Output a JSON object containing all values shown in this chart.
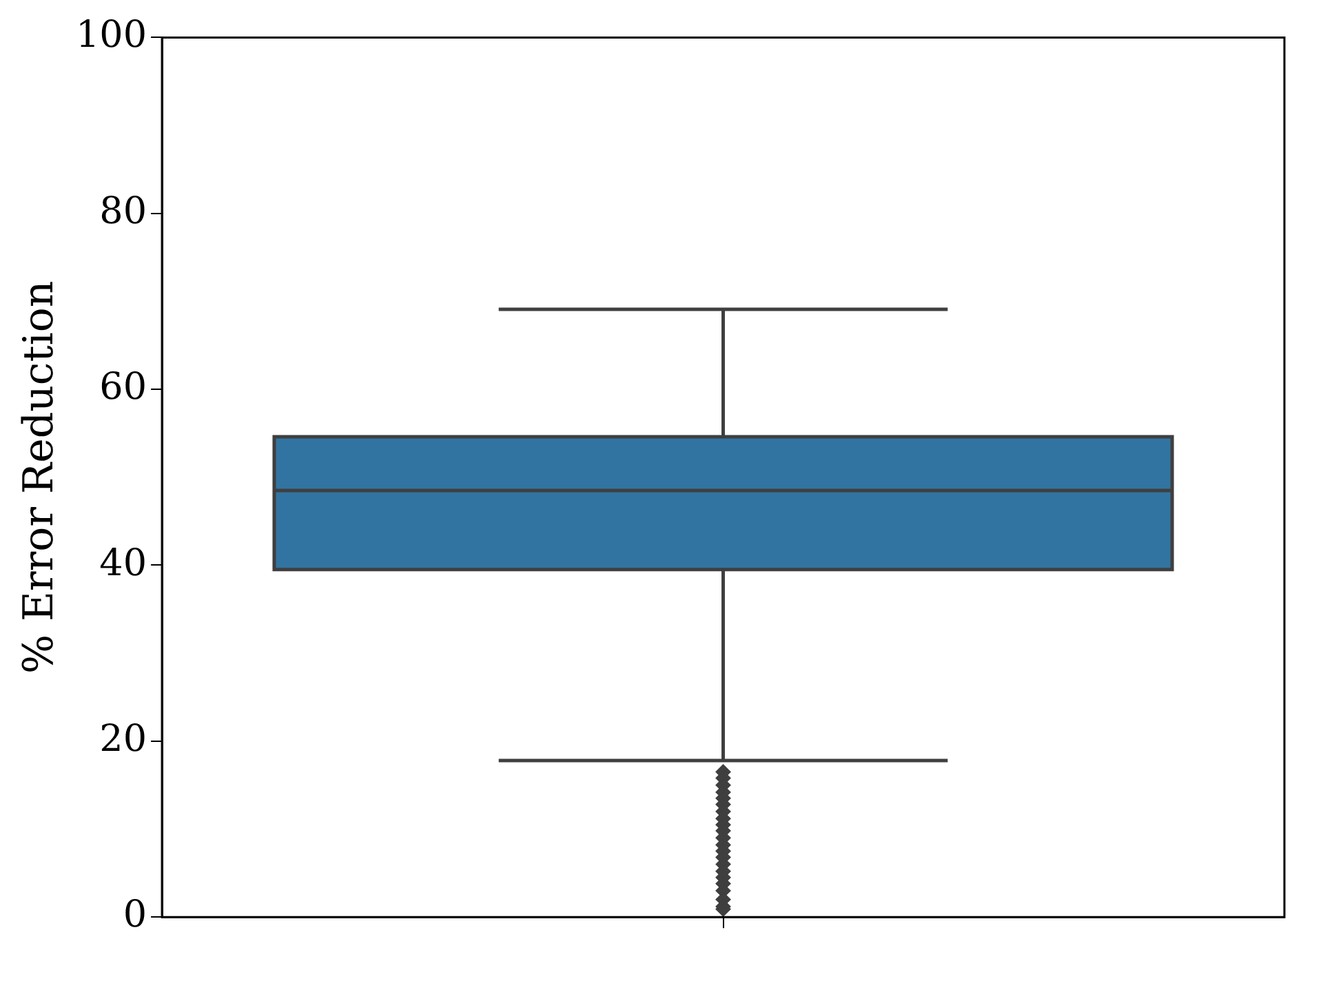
{
  "chart_data": {
    "type": "box",
    "ylabel": "% Error Reduction",
    "categories": [
      null
    ],
    "boxes": [
      {
        "low": 17.8,
        "q1": 39.5,
        "median": 48.5,
        "q3": 54.6,
        "high": 69.1,
        "outliers": [
          16.5,
          15.8,
          15,
          14.2,
          13.5,
          12.8,
          12,
          11.2,
          10.5,
          9.8,
          9,
          8.2,
          7.5,
          6.8,
          6,
          5.2,
          4.5,
          3.8,
          3,
          2,
          1.2,
          0.9
        ]
      }
    ],
    "color": "#3274a1",
    "ylim": [
      0,
      100
    ],
    "yticks": [
      0,
      20,
      40,
      60,
      80,
      100
    ],
    "grid": false,
    "legend": false,
    "marker": "diamond"
  }
}
